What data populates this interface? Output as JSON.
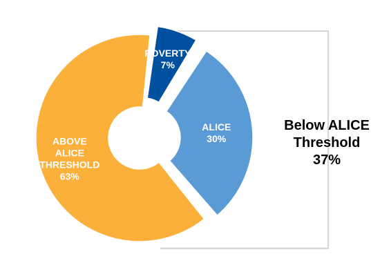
{
  "chart_data": {
    "type": "pie",
    "title": "",
    "slices": [
      {
        "label": "POVERTY",
        "value": 7,
        "display": "7%",
        "color": "#0050A0"
      },
      {
        "label": "ALICE",
        "value": 30,
        "display": "30%",
        "color": "#5B9BD5"
      },
      {
        "label": "ABOVE ALICE THRESHOLD",
        "value": 63,
        "display": "63%",
        "color": "#FBB03B"
      }
    ],
    "group": {
      "label_lines": [
        "Below ALICE",
        "Threshold"
      ],
      "value": "37%",
      "members": [
        "POVERTY",
        "ALICE"
      ]
    }
  }
}
